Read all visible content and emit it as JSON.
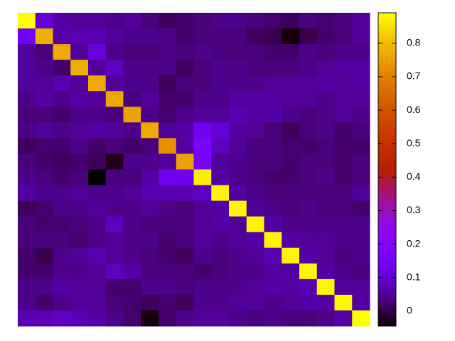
{
  "chart_data": {
    "type": "heatmap",
    "palette": "gnuplot",
    "zlim": [
      -0.045,
      0.891
    ],
    "cbticks": [
      0,
      0.1,
      0.2,
      0.3,
      0.4,
      0.5,
      0.6,
      0.7,
      0.8
    ],
    "z": [
      [
        0.89,
        0.1,
        0.06,
        0.05,
        0.05,
        0.04,
        0.05,
        0.03,
        0.01,
        0.02,
        0.03,
        0.04,
        0.04,
        0.03,
        0.02,
        0.01,
        0.03,
        0.02,
        0.03,
        0.05
      ],
      [
        0.14,
        0.78,
        0.06,
        0.07,
        0.07,
        0.05,
        0.04,
        0.04,
        0.04,
        0.02,
        0.03,
        0.03,
        0.03,
        0.01,
        0.0,
        -0.04,
        0.0,
        0.02,
        0.03,
        0.05
      ],
      [
        0.05,
        0.03,
        0.77,
        0.05,
        0.11,
        0.04,
        0.03,
        0.03,
        0.04,
        0.03,
        0.04,
        0.03,
        0.03,
        0.03,
        0.02,
        0.02,
        0.04,
        0.03,
        0.04,
        0.04
      ],
      [
        0.05,
        0.04,
        0.02,
        0.78,
        0.05,
        0.08,
        0.04,
        0.04,
        0.04,
        0.01,
        0.03,
        0.04,
        0.04,
        0.03,
        0.03,
        0.03,
        0.04,
        0.05,
        0.06,
        0.06
      ],
      [
        0.05,
        0.05,
        0.07,
        0.05,
        0.77,
        0.05,
        0.04,
        0.04,
        0.01,
        0.03,
        0.03,
        0.04,
        0.04,
        0.04,
        0.05,
        0.05,
        0.05,
        0.06,
        0.05,
        0.06
      ],
      [
        0.04,
        0.06,
        0.04,
        0.06,
        0.05,
        0.77,
        0.03,
        0.05,
        0.02,
        0.02,
        0.04,
        0.04,
        0.06,
        0.06,
        0.06,
        0.05,
        0.05,
        0.04,
        0.05,
        0.05
      ],
      [
        0.03,
        0.03,
        0.02,
        0.04,
        0.04,
        0.03,
        0.76,
        0.04,
        0.02,
        0.04,
        0.05,
        0.05,
        0.07,
        0.06,
        0.06,
        0.04,
        0.03,
        0.04,
        0.05,
        0.04
      ],
      [
        0.04,
        0.05,
        0.04,
        0.05,
        0.06,
        0.05,
        0.04,
        0.77,
        0.05,
        0.06,
        0.14,
        0.1,
        0.06,
        0.05,
        0.03,
        0.01,
        0.03,
        0.04,
        0.02,
        0.03
      ],
      [
        0.01,
        0.02,
        0.02,
        0.04,
        0.02,
        0.03,
        0.02,
        0.03,
        0.73,
        0.06,
        0.17,
        0.08,
        0.05,
        0.03,
        0.03,
        0.02,
        0.02,
        0.03,
        0.02,
        0.02
      ],
      [
        0.03,
        0.02,
        0.01,
        0.02,
        0.01,
        -0.03,
        0.04,
        0.04,
        0.05,
        0.76,
        0.16,
        0.05,
        0.04,
        0.03,
        0.03,
        0.02,
        0.03,
        0.03,
        0.02,
        0.03
      ],
      [
        0.04,
        0.03,
        0.02,
        0.03,
        -0.05,
        0.03,
        0.03,
        0.06,
        0.13,
        0.13,
        0.87,
        0.06,
        0.04,
        0.03,
        0.02,
        0.02,
        0.03,
        0.04,
        0.02,
        0.03
      ],
      [
        0.06,
        0.04,
        0.04,
        0.05,
        0.04,
        0.04,
        0.05,
        0.07,
        0.07,
        0.07,
        0.08,
        0.88,
        0.06,
        0.04,
        0.03,
        0.03,
        0.03,
        0.03,
        0.03,
        0.05
      ],
      [
        0.01,
        0.02,
        0.04,
        0.04,
        0.05,
        0.04,
        0.04,
        0.05,
        0.04,
        0.03,
        0.05,
        0.06,
        0.88,
        0.05,
        0.04,
        0.03,
        0.04,
        0.03,
        0.03,
        0.02
      ],
      [
        0.03,
        0.02,
        0.02,
        0.03,
        0.04,
        0.08,
        0.04,
        0.03,
        0.03,
        0.03,
        0.05,
        0.06,
        0.05,
        0.88,
        0.06,
        0.04,
        0.04,
        0.04,
        0.04,
        0.04
      ],
      [
        0.03,
        0.03,
        0.03,
        0.02,
        0.04,
        0.05,
        0.04,
        0.04,
        0.02,
        0.03,
        0.05,
        0.04,
        0.05,
        0.06,
        0.88,
        0.06,
        0.05,
        0.05,
        0.04,
        0.04
      ],
      [
        0.02,
        0.0,
        0.04,
        0.05,
        0.07,
        0.05,
        0.04,
        0.03,
        0.02,
        0.01,
        0.04,
        0.03,
        0.04,
        0.05,
        0.07,
        0.88,
        0.06,
        0.05,
        0.03,
        0.04
      ],
      [
        0.02,
        0.02,
        0.04,
        0.04,
        0.05,
        0.08,
        0.06,
        0.03,
        0.03,
        0.03,
        0.02,
        0.03,
        0.04,
        0.04,
        0.06,
        0.06,
        0.88,
        0.06,
        0.04,
        0.03
      ],
      [
        0.04,
        0.04,
        0.06,
        0.05,
        0.05,
        0.02,
        0.02,
        0.04,
        0.04,
        0.03,
        0.04,
        0.04,
        0.04,
        0.05,
        0.06,
        0.06,
        0.07,
        0.88,
        0.05,
        0.05
      ],
      [
        0.04,
        0.02,
        0.04,
        0.05,
        0.05,
        0.03,
        0.02,
        0.01,
        0.02,
        0.01,
        0.04,
        0.04,
        0.05,
        0.05,
        0.04,
        0.05,
        0.06,
        0.06,
        0.88,
        0.06
      ],
      [
        0.07,
        0.07,
        0.08,
        0.07,
        0.06,
        0.04,
        0.02,
        -0.04,
        0.02,
        0.04,
        0.05,
        0.05,
        0.04,
        0.03,
        0.04,
        0.03,
        0.03,
        0.04,
        0.06,
        0.89
      ]
    ]
  }
}
